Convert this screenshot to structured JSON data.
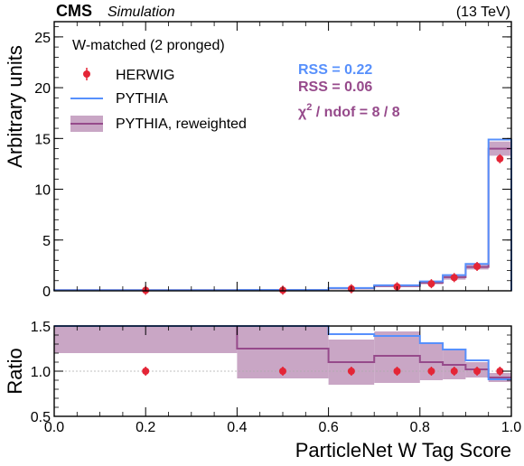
{
  "header": {
    "experiment": "CMS",
    "tag": "Simulation",
    "energy": "(13 TeV)"
  },
  "colors": {
    "herwig": "#e42536",
    "pythia": "#5790fc",
    "reweighted": "#964a8b",
    "band": "#c9a6c5"
  },
  "chart_data": [
    {
      "type": "line",
      "panel": "main",
      "ylabel": "Arbitrary units",
      "ylim": [
        0,
        26.5
      ],
      "yticks": [
        0,
        5,
        10,
        15,
        20,
        25
      ],
      "xlim": [
        0,
        1
      ],
      "bin_edges": [
        0,
        0.4,
        0.6,
        0.7,
        0.8,
        0.85,
        0.9,
        0.95,
        1.0
      ],
      "legend_title": "W-matched (2 pronged)",
      "legend": [
        {
          "label": "HERWIG",
          "style": "marker"
        },
        {
          "label": "PYTHIA",
          "style": "line"
        },
        {
          "label": "PYTHIA, reweighted",
          "style": "band"
        }
      ],
      "annotations": [
        {
          "text": "RSS = 0.22",
          "color": "pythia"
        },
        {
          "text": "RSS = 0.06",
          "color": "reweighted"
        },
        {
          "text_prefix": "χ",
          "sup": "2",
          "text_suffix": " / ndof = 8 / 8",
          "color": "reweighted"
        }
      ],
      "series": [
        {
          "name": "HERWIG",
          "x": [
            0.2,
            0.5,
            0.65,
            0.75,
            0.825,
            0.875,
            0.925,
            0.975
          ],
          "values": [
            0.05,
            0.06,
            0.2,
            0.4,
            0.7,
            1.3,
            2.4,
            13.0
          ]
        },
        {
          "name": "PYTHIA",
          "values": [
            0.06,
            0.08,
            0.28,
            0.55,
            0.92,
            1.55,
            2.65,
            14.9
          ]
        },
        {
          "name": "PYTHIA, reweighted",
          "values": [
            0.07,
            0.08,
            0.25,
            0.48,
            0.8,
            1.35,
            2.35,
            14.0
          ],
          "band_low": [
            0.06,
            0.07,
            0.18,
            0.36,
            0.64,
            1.1,
            2.1,
            13.3
          ],
          "band_high": [
            0.09,
            0.1,
            0.32,
            0.6,
            0.96,
            1.6,
            2.6,
            14.7
          ]
        }
      ]
    },
    {
      "type": "line",
      "panel": "ratio",
      "ylabel": "Ratio",
      "xlabel": "ParticleNet W Tag Score",
      "ylim": [
        0.5,
        1.5
      ],
      "yticks": [
        0.5,
        1.0,
        1.5
      ],
      "ytick_labels": [
        "0.5",
        "1.0",
        "1.5"
      ],
      "xlim": [
        0,
        1
      ],
      "xticks": [
        0,
        0.2,
        0.4,
        0.6,
        0.8,
        1.0
      ],
      "xtick_labels": [
        "0.0",
        "0.2",
        "0.4",
        "0.6",
        "0.8",
        "1.0"
      ],
      "bin_edges": [
        0,
        0.4,
        0.6,
        0.7,
        0.8,
        0.85,
        0.9,
        0.95,
        1.0
      ],
      "series": [
        {
          "name": "HERWIG",
          "x": [
            0.2,
            0.5,
            0.65,
            0.75,
            0.825,
            0.875,
            0.925,
            0.975
          ],
          "values": [
            1.0,
            1.0,
            1.0,
            1.0,
            1.0,
            1.0,
            1.0,
            1.0
          ]
        },
        {
          "name": "PYTHIA",
          "values": [
            1.6,
            1.6,
            1.41,
            1.39,
            1.31,
            1.24,
            1.12,
            0.91
          ]
        },
        {
          "name": "PYTHIA, reweighted",
          "values": [
            1.6,
            1.25,
            1.1,
            1.17,
            1.1,
            1.07,
            1.02,
            0.93
          ],
          "band_low": [
            1.2,
            0.92,
            0.85,
            0.87,
            0.9,
            0.91,
            0.93,
            0.88
          ],
          "band_high": [
            1.6,
            1.6,
            1.35,
            1.44,
            1.31,
            1.24,
            1.1,
            0.98
          ]
        }
      ]
    }
  ]
}
